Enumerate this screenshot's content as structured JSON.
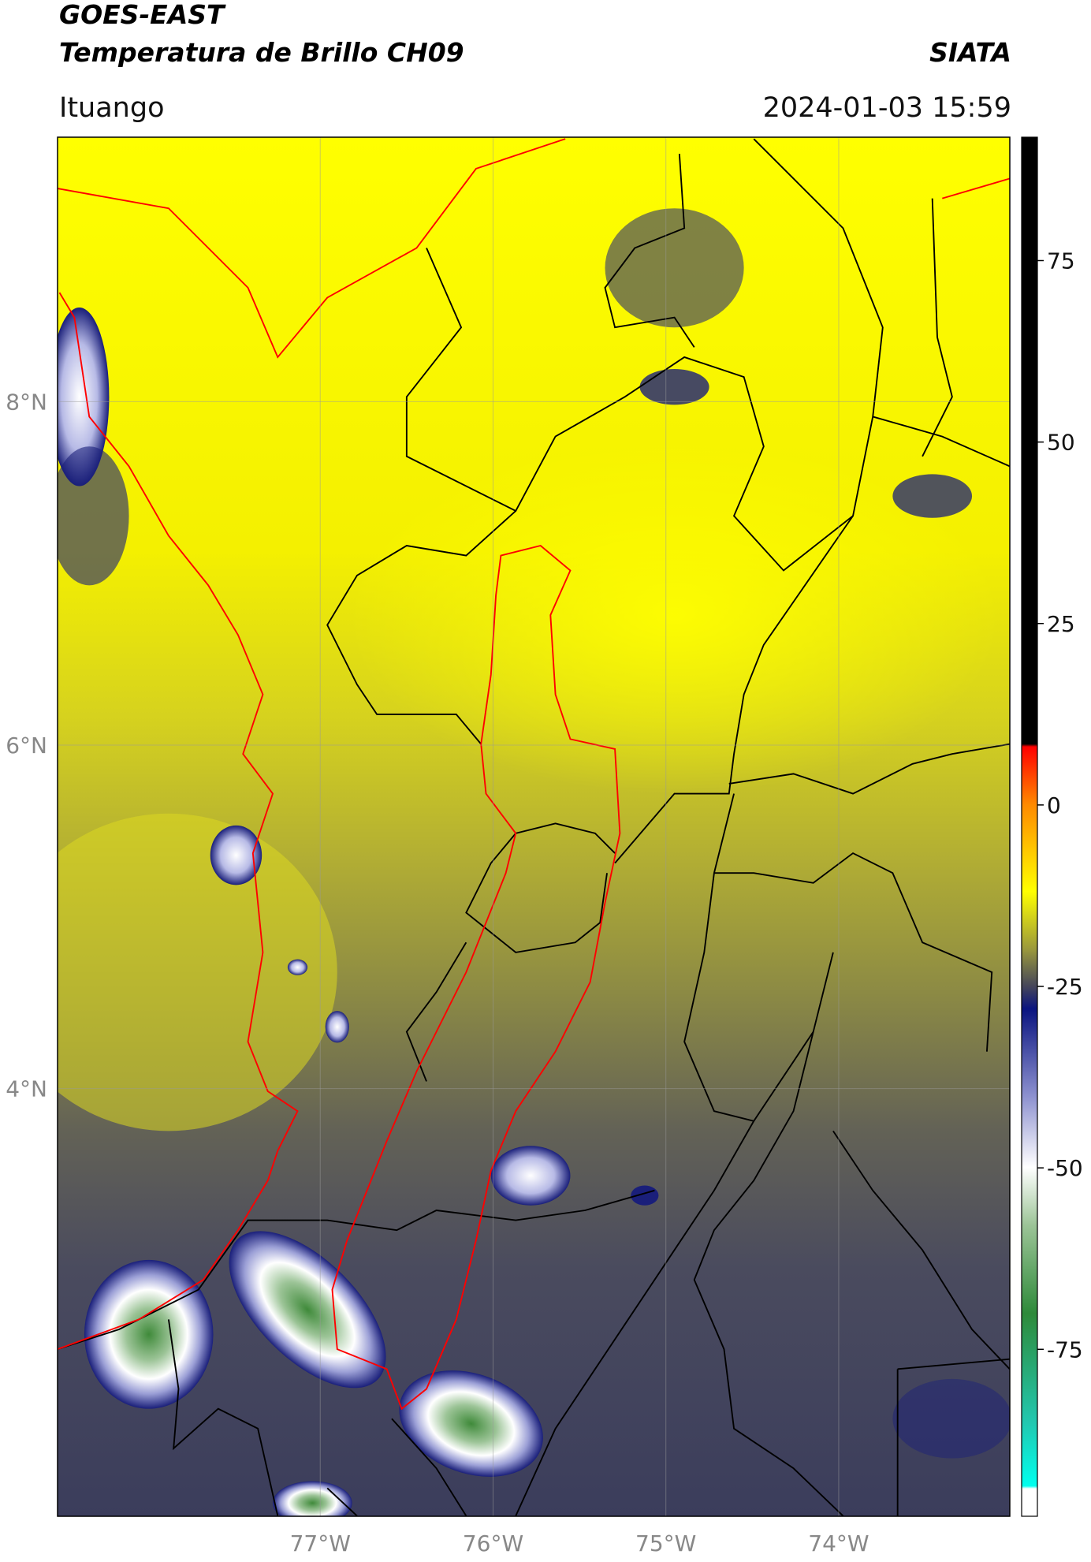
{
  "chart_data": {
    "type": "map",
    "title": "GOES-EAST",
    "subtitle": "Temperatura de Brillo CH09",
    "source": "SIATA",
    "region": "Ituango",
    "datetime": "2024-01-03 15:59",
    "xlim": [
      -78.52,
      -73.01
    ],
    "ylim": [
      1.51,
      9.54
    ],
    "xticks": [
      {
        "value": -77,
        "label": "77°W"
      },
      {
        "value": -76,
        "label": "76°W"
      },
      {
        "value": -75,
        "label": "75°W"
      },
      {
        "value": -74,
        "label": "74°W"
      }
    ],
    "yticks": [
      {
        "value": 8,
        "label": "8°N"
      },
      {
        "value": 6,
        "label": "6°N"
      },
      {
        "value": 4,
        "label": "4°N"
      }
    ],
    "grid": true,
    "colorbar": {
      "ylim": [
        -98,
        92
      ],
      "yticks": [
        75,
        50,
        25,
        0,
        -25,
        -50,
        -75
      ]
    }
  }
}
